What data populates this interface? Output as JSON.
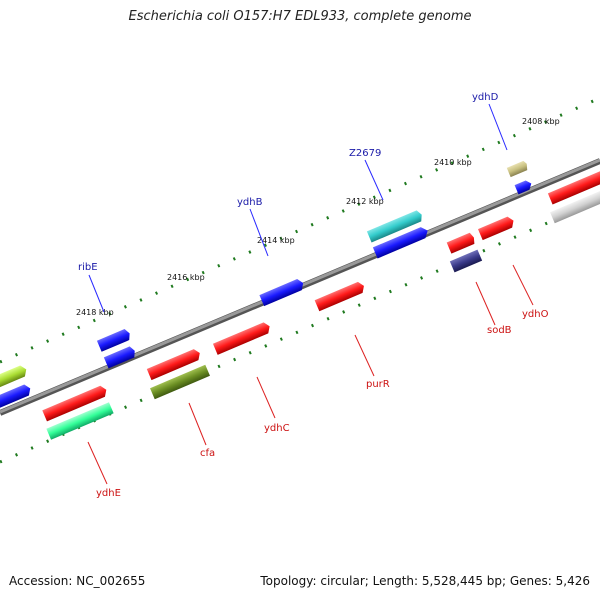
{
  "title": "Escherichia coli O157:H7 EDL933, complete genome",
  "footer": {
    "accession": "Accession: NC_002655",
    "summary": "Topology: circular; Length: 5,528,445 bp; Genes: 5,426"
  },
  "ticks": [
    "2408 kbp",
    "2410 kbp",
    "2412 kbp",
    "2414 kbp",
    "2416 kbp",
    "2418 kbp"
  ],
  "genes_top": [
    "ydhD",
    "Z2679",
    "ydhB",
    "ribE"
  ],
  "genes_bottom": [
    "sodB",
    "ydhO",
    "purR",
    "ydhC",
    "cfa",
    "ydhE"
  ],
  "colors": {
    "backbone": "#808080",
    "tick_mark": "#1f7a1f",
    "forward_red": "#ff1a1a",
    "blue": "#1a1aff",
    "cyan": "#33cccc",
    "olive": "#6b8e23",
    "aqua_green": "#33ff99",
    "lime": "#aadd33",
    "khaki": "#c8c080",
    "navy": "#3a3a8a",
    "grey": "#d0d0d0"
  }
}
